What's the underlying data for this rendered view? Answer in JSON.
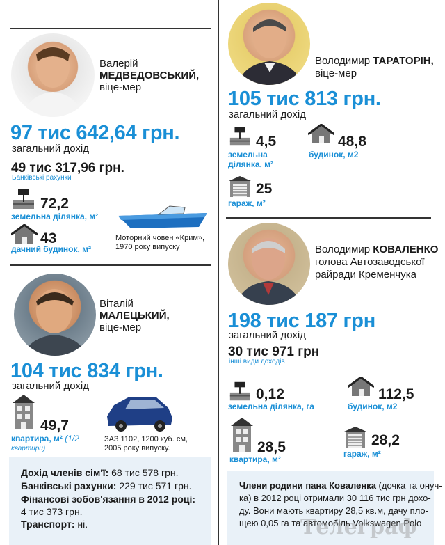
{
  "left": {
    "person1": {
      "first_name": "Валерій",
      "last_name": "МЕДВЕДОВСЬКИЙ,",
      "role": "віце-мер",
      "income": "97 тис 642,64 грн.",
      "income_label": "загальний дохід",
      "bank": "49 тис 317,96 грн.",
      "bank_label": "Банківські рахунки",
      "land_value": "72,2",
      "land_label": "земельна ділянка, м²",
      "house_value": "43",
      "house_label": "дачний будинок, м²",
      "boat_caption_1": "Моторний човен «Крим»,",
      "boat_caption_2": "1970 року випуску"
    },
    "person2": {
      "first_name": "Віталій",
      "last_name": "МАЛЕЦЬКИЙ,",
      "role": "віце-мер",
      "income": "104 тис 834 грн.",
      "income_label": "загальний дохід",
      "apt_value": "49,7",
      "apt_label": "квартира, м²",
      "apt_note": "(1/2",
      "apt_note2": "квартири)",
      "car_caption_1": "ЗАЗ 1102, 1200 куб. см,",
      "car_caption_2": "2005 року випуску."
    },
    "family_box": {
      "line1_bold": "Дохід членів сім'ї:",
      "line1_rest": " 68 тис 578 грн.",
      "line2_bold": "Банківські рахунки:",
      "line2_rest": " 229 тис 571 грн.",
      "line3_bold": "Фінансові зобов'язання в 2012 році:",
      "line4": "4 тис 373 грн.",
      "line5_bold": "Транспорт:",
      "line5_rest": " ні."
    }
  },
  "right": {
    "person3": {
      "first_name": "Володимир",
      "last_name": "ТАРАТОРІН,",
      "role": "віце-мер",
      "income": "105 тис 813 грн.",
      "income_label": "загальний дохід",
      "land_value": "4,5",
      "land_label_1": "земельна",
      "land_label_2": "ділянка, м²",
      "house_value": "48,8",
      "house_label": "будинок, м2",
      "garage_value": "25",
      "garage_label": "гараж, м²"
    },
    "person4": {
      "first_name": "Володимир",
      "last_name": "КОВАЛЕНКО",
      "role_1": "голова Автозаводської",
      "role_2": "райради Кременчука",
      "income": "198 тис 187 грн",
      "income_label": "загальний дохід",
      "other": "30 тис 971 грн",
      "other_label": "інші види доходів",
      "land_value": "0,12",
      "land_label": "земельна ділянка, га",
      "house_value": "112,5",
      "house_label": "будинок, м2",
      "apt_value": "28,5",
      "apt_label": "квартира, м²",
      "garage_value": "28,2",
      "garage_label": "гараж, м²"
    },
    "family_box": {
      "bold": "Члени родини пана Коваленка",
      "l1": " (дочка та онуч-",
      "l2": "ка) в 2012 році отримали 30 116 тис грн дохо-",
      "l3": "ду. Вони мають квартиру 28,5 кв.м, дачу пло-",
      "l4": "щею 0,05 га та автомобіль Volkswagen Polo"
    }
  },
  "watermark": "Телеграф"
}
